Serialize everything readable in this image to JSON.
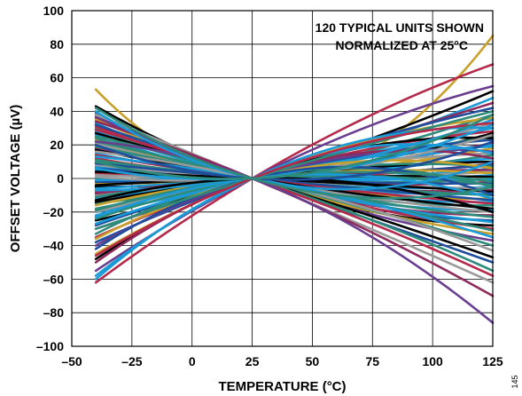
{
  "chart_data": {
    "type": "line",
    "xlabel": "TEMPERATURE (°C)",
    "ylabel": "OFFSET VOLTAGE (µV)",
    "xlim": [
      -50,
      125
    ],
    "ylim": [
      -100,
      100
    ],
    "xticks": [
      -50,
      -25,
      0,
      25,
      50,
      75,
      100,
      125
    ],
    "yticks": [
      -100,
      -80,
      -60,
      -40,
      -20,
      0,
      20,
      40,
      60,
      80,
      100
    ],
    "xtick_labels": [
      "–50",
      "–25",
      "0",
      "25",
      "50",
      "75",
      "100",
      "125"
    ],
    "ytick_labels": [
      "–100",
      "–80",
      "–60",
      "–40",
      "–20",
      "0",
      "20",
      "40",
      "60",
      "80",
      "100"
    ],
    "grid": true,
    "annotation": [
      "120 TYPICAL UNITS SHOWN",
      "NORMALIZED AT 25°C"
    ],
    "figure_number": "145",
    "x": [
      -40,
      25,
      125
    ],
    "colors": [
      "#c8a02a",
      "#000000",
      "#1f4e9c",
      "#1a9ad6",
      "#8e2a5c",
      "#6a3d8f",
      "#2e8b7a",
      "#9a9a9a",
      "#b5294a"
    ],
    "series": [
      {
        "values": [
          53,
          0,
          85
        ],
        "color": "#c8a02a"
      },
      {
        "values": [
          -62,
          0,
          68
        ],
        "color": "#b5294a"
      },
      {
        "values": [
          -55,
          0,
          55
        ],
        "color": "#6a3d8f"
      },
      {
        "values": [
          -25,
          0,
          52
        ],
        "color": "#000000"
      },
      {
        "values": [
          -20,
          0,
          48
        ],
        "color": "#1a9ad6"
      },
      {
        "values": [
          -30,
          0,
          45
        ],
        "color": "#8e2a5c"
      },
      {
        "values": [
          -38,
          0,
          42
        ],
        "color": "#1f4e9c"
      },
      {
        "values": [
          -15,
          0,
          38
        ],
        "color": "#2e8b7a"
      },
      {
        "values": [
          -45,
          0,
          36
        ],
        "color": "#c8a02a"
      },
      {
        "values": [
          -10,
          0,
          33
        ],
        "color": "#9a9a9a"
      },
      {
        "values": [
          -22,
          0,
          30
        ],
        "color": "#1a9ad6"
      },
      {
        "values": [
          -35,
          0,
          28
        ],
        "color": "#b5294a"
      },
      {
        "values": [
          -5,
          0,
          27
        ],
        "color": "#000000"
      },
      {
        "values": [
          -18,
          0,
          25
        ],
        "color": "#2e8b7a"
      },
      {
        "values": [
          -28,
          0,
          23
        ],
        "color": "#1f4e9c"
      },
      {
        "values": [
          -8,
          0,
          21
        ],
        "color": "#8e2a5c"
      },
      {
        "values": [
          -12,
          0,
          20
        ],
        "color": "#1a9ad6"
      },
      {
        "values": [
          -3,
          0,
          18
        ],
        "color": "#c8a02a"
      },
      {
        "values": [
          -40,
          0,
          16
        ],
        "color": "#6a3d8f"
      },
      {
        "values": [
          -20,
          0,
          15
        ],
        "color": "#9a9a9a"
      },
      {
        "values": [
          0,
          0,
          14
        ],
        "color": "#2e8b7a"
      },
      {
        "values": [
          -6,
          0,
          12
        ],
        "color": "#1a9ad6"
      },
      {
        "values": [
          -14,
          0,
          10
        ],
        "color": "#000000"
      },
      {
        "values": [
          3,
          0,
          9
        ],
        "color": "#b5294a"
      },
      {
        "values": [
          -2,
          0,
          8
        ],
        "color": "#1f4e9c"
      },
      {
        "values": [
          -24,
          0,
          7
        ],
        "color": "#2e8b7a"
      },
      {
        "values": [
          5,
          0,
          6
        ],
        "color": "#1a9ad6"
      },
      {
        "values": [
          -9,
          0,
          5
        ],
        "color": "#8e2a5c"
      },
      {
        "values": [
          2,
          0,
          4
        ],
        "color": "#9a9a9a"
      },
      {
        "values": [
          -16,
          0,
          3
        ],
        "color": "#c8a02a"
      },
      {
        "values": [
          7,
          0,
          2
        ],
        "color": "#1a9ad6"
      },
      {
        "values": [
          -4,
          0,
          1
        ],
        "color": "#000000"
      },
      {
        "values": [
          10,
          0,
          0
        ],
        "color": "#2e8b7a"
      },
      {
        "values": [
          -1,
          0,
          -1
        ],
        "color": "#1a9ad6"
      },
      {
        "values": [
          12,
          0,
          -2
        ],
        "color": "#b5294a"
      },
      {
        "values": [
          6,
          0,
          -3
        ],
        "color": "#1f4e9c"
      },
      {
        "values": [
          -11,
          0,
          -4
        ],
        "color": "#2e8b7a"
      },
      {
        "values": [
          15,
          0,
          -5
        ],
        "color": "#1a9ad6"
      },
      {
        "values": [
          8,
          0,
          -6
        ],
        "color": "#9a9a9a"
      },
      {
        "values": [
          18,
          0,
          -7
        ],
        "color": "#8e2a5c"
      },
      {
        "values": [
          4,
          0,
          -8
        ],
        "color": "#000000"
      },
      {
        "values": [
          20,
          0,
          -9
        ],
        "color": "#1a9ad6"
      },
      {
        "values": [
          11,
          0,
          -10
        ],
        "color": "#2e8b7a"
      },
      {
        "values": [
          23,
          0,
          -12
        ],
        "color": "#c8a02a"
      },
      {
        "values": [
          9,
          0,
          -13
        ],
        "color": "#1f4e9c"
      },
      {
        "values": [
          26,
          0,
          -14
        ],
        "color": "#1a9ad6"
      },
      {
        "values": [
          14,
          0,
          -15
        ],
        "color": "#b5294a"
      },
      {
        "values": [
          30,
          0,
          -16
        ],
        "color": "#2e8b7a"
      },
      {
        "values": [
          17,
          0,
          -18
        ],
        "color": "#000000"
      },
      {
        "values": [
          33,
          0,
          -19
        ],
        "color": "#1a9ad6"
      },
      {
        "values": [
          21,
          0,
          -20
        ],
        "color": "#9a9a9a"
      },
      {
        "values": [
          36,
          0,
          -22
        ],
        "color": "#8e2a5c"
      },
      {
        "values": [
          24,
          0,
          -23
        ],
        "color": "#2e8b7a"
      },
      {
        "values": [
          39,
          0,
          -25
        ],
        "color": "#1f4e9c"
      },
      {
        "values": [
          28,
          0,
          -26
        ],
        "color": "#1a9ad6"
      },
      {
        "values": [
          43,
          0,
          -28
        ],
        "color": "#000000"
      },
      {
        "values": [
          31,
          0,
          -30
        ],
        "color": "#b5294a"
      },
      {
        "values": [
          19,
          0,
          -31
        ],
        "color": "#2e8b7a"
      },
      {
        "values": [
          35,
          0,
          -33
        ],
        "color": "#c8a02a"
      },
      {
        "values": [
          13,
          0,
          -35
        ],
        "color": "#1a9ad6"
      },
      {
        "values": [
          37,
          0,
          -37
        ],
        "color": "#6a3d8f"
      },
      {
        "values": [
          22,
          0,
          -40
        ],
        "color": "#2e8b7a"
      },
      {
        "values": [
          16,
          0,
          -43
        ],
        "color": "#9a9a9a"
      },
      {
        "values": [
          27,
          0,
          -47
        ],
        "color": "#000000"
      },
      {
        "values": [
          32,
          0,
          -50
        ],
        "color": "#1f4e9c"
      },
      {
        "values": [
          25,
          0,
          -55
        ],
        "color": "#2e8b7a"
      },
      {
        "values": [
          29,
          0,
          -58
        ],
        "color": "#b5294a"
      },
      {
        "values": [
          38,
          0,
          -62
        ],
        "color": "#9a9a9a"
      },
      {
        "values": [
          34,
          0,
          -70
        ],
        "color": "#8e2a5c"
      },
      {
        "values": [
          22,
          0,
          -86
        ],
        "color": "#6a3d8f"
      },
      {
        "values": [
          -48,
          0,
          24
        ],
        "color": "#000000"
      },
      {
        "values": [
          -58,
          0,
          30
        ],
        "color": "#1a9ad6"
      },
      {
        "values": [
          -50,
          0,
          12
        ],
        "color": "#8e2a5c"
      },
      {
        "values": [
          -33,
          0,
          -5
        ],
        "color": "#2e8b7a"
      },
      {
        "values": [
          -27,
          0,
          19
        ],
        "color": "#1a9ad6"
      },
      {
        "values": [
          1,
          0,
          26
        ],
        "color": "#9a9a9a"
      },
      {
        "values": [
          -7,
          0,
          35
        ],
        "color": "#1a9ad6"
      },
      {
        "values": [
          -36,
          0,
          6
        ],
        "color": "#c8a02a"
      },
      {
        "values": [
          -42,
          0,
          -10
        ],
        "color": "#1f4e9c"
      },
      {
        "values": [
          -19,
          0,
          -2
        ],
        "color": "#2e8b7a"
      },
      {
        "values": [
          -23,
          0,
          -12
        ],
        "color": "#1a9ad6"
      },
      {
        "values": [
          -13,
          0,
          -20
        ],
        "color": "#000000"
      },
      {
        "values": [
          -30,
          0,
          40
        ],
        "color": "#2e8b7a"
      },
      {
        "values": [
          40,
          0,
          10
        ],
        "color": "#1a9ad6"
      },
      {
        "values": [
          20,
          0,
          22
        ],
        "color": "#1f4e9c"
      },
      {
        "values": [
          -60,
          0,
          15
        ],
        "color": "#1a9ad6"
      },
      {
        "values": [
          42,
          0,
          -5
        ],
        "color": "#2e8b7a"
      },
      {
        "values": [
          -46,
          0,
          33
        ],
        "color": "#b5294a"
      },
      {
        "values": [
          6,
          0,
          32
        ],
        "color": "#1a9ad6"
      },
      {
        "values": [
          10,
          0,
          38
        ],
        "color": "#2e8b7a"
      }
    ]
  }
}
